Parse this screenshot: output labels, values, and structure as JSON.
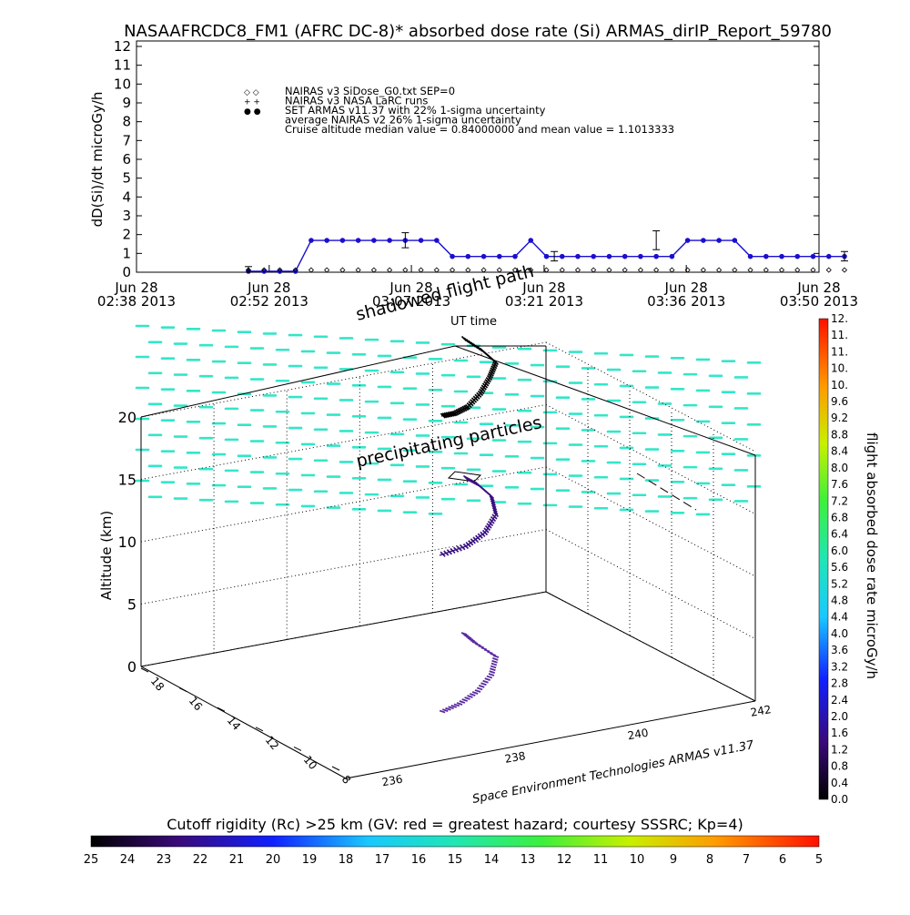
{
  "title": "NASAAFRCDC8_FM1 (AFRC DC-8)* absorbed dose rate (Si) ARMAS_dirIP_Report_59780",
  "chart_data": [
    {
      "type": "scatter",
      "ylabel": "dD(Si)/dt microGy/h",
      "ylim": [
        0,
        12
      ],
      "yticks": [
        "0",
        "1",
        "2",
        "3",
        "4",
        "5",
        "6",
        "7",
        "8",
        "9",
        "10",
        "11",
        "12"
      ],
      "xlim": [
        0,
        72
      ],
      "xtick_values": [
        0,
        14,
        29,
        43,
        58,
        72
      ],
      "xtick_top": [
        "Jun 28",
        "Jun 28",
        "Jun 28",
        "Jun 28",
        "Jun 28",
        "Jun 28"
      ],
      "xtick_bottom": [
        "02:38 2013",
        "02:52 2013",
        "03:07 2013",
        "03:21 2013",
        "03:36 2013",
        "03:50 2013"
      ],
      "legend": [
        {
          "symbol": "◇ ◇",
          "text": "NAIRAS v3 SiDose_G0.txt SEP=0"
        },
        {
          "symbol": "+ +",
          "text": "NAIRAS v3 NASA LaRC runs"
        },
        {
          "symbol": "● ●",
          "text": "SET ARMAS v11.37 with 22% 1-sigma uncertainty"
        },
        {
          "symbol": "",
          "text": "average NAIRAS v2 26% 1-sigma uncertainty"
        },
        {
          "symbol": "",
          "text": "Cruise altitude median value = 0.84000000 and mean value = 1.1013333"
        }
      ],
      "series": [
        {
          "name": "SET ARMAS v11.37",
          "color": "#1a0fcf",
          "x": [
            11,
            13,
            15,
            17,
            19,
            21,
            23,
            25,
            27,
            29,
            31,
            33,
            35,
            37,
            39,
            41,
            43,
            45,
            47,
            49,
            51,
            53,
            55,
            57,
            59,
            61,
            63,
            65,
            67,
            69,
            71,
            73,
            75,
            77,
            79,
            81,
            83,
            85,
            87
          ],
          "y": [
            0.05,
            0.05,
            0.05,
            0.05,
            1.69,
            1.69,
            1.69,
            1.69,
            1.69,
            1.69,
            1.69,
            1.69,
            1.69,
            0.84,
            0.84,
            0.84,
            0.84,
            0.84,
            1.69,
            0.84,
            0.84,
            0.84,
            0.84,
            0.84,
            0.84,
            0.84,
            0.84,
            0.84,
            1.69,
            1.69,
            1.69,
            1.69,
            0.84,
            0.84,
            0.84,
            0.84,
            0.84,
            0.84,
            0.84
          ]
        },
        {
          "name": "NAIRAS v3 SiDose_G0.txt SEP=0",
          "color": "#000000",
          "x": [
            11,
            13,
            15,
            17,
            19,
            21,
            23,
            25,
            27,
            29,
            31,
            33,
            35,
            37,
            39,
            41,
            43,
            45,
            47,
            49,
            51,
            53,
            55,
            57,
            59,
            61,
            63,
            65,
            67,
            69,
            71,
            73,
            75,
            77,
            79,
            81,
            83,
            85,
            87
          ],
          "y": [
            0.02,
            0.02,
            0.02,
            0.02,
            0.02,
            0.02,
            0.02,
            0.02,
            0.02,
            0.02,
            0.02,
            0.02,
            0.02,
            0.02,
            0.02,
            0.02,
            0.02,
            0.02,
            0.02,
            0.02,
            0.02,
            0.02,
            0.02,
            0.02,
            0.02,
            0.02,
            0.02,
            0.02,
            0.02,
            0.02,
            0.02,
            0.02,
            0.02,
            0.02,
            0.02,
            0.02,
            0.02,
            0.02,
            0.02
          ]
        }
      ],
      "error_bars_x": [
        11,
        31,
        50,
        63,
        87
      ],
      "error_bars": [
        {
          "x": 11,
          "y": 0.05,
          "lo": 0.0,
          "hi": 0.3
        },
        {
          "x": 31,
          "y": 1.69,
          "lo": 1.3,
          "hi": 2.1
        },
        {
          "x": 50,
          "y": 0.84,
          "lo": 0.6,
          "hi": 1.1
        },
        {
          "x": 63,
          "y": 1.69,
          "lo": 1.2,
          "hi": 2.2
        },
        {
          "x": 87,
          "y": 0.84,
          "lo": 0.6,
          "hi": 1.1
        }
      ]
    },
    {
      "type": "scatter",
      "ylabel": "Altitude (km)",
      "zlim": [
        0,
        20
      ],
      "zticks": [
        "0",
        "5",
        "10",
        "15",
        "20"
      ],
      "lat_ticks": [
        "8",
        "10",
        "12",
        "14",
        "16",
        "18"
      ],
      "lon_ticks": [
        "236",
        "238",
        "240",
        "242"
      ],
      "annotations": [
        "shadowed flight path",
        "UT time",
        "precipitating particles"
      ],
      "credit": "Space Environment Technologies ARMAS v11.37",
      "colorbar_label": "flight absorbed dose rate microGy/h",
      "colorbar_ticks": [
        "0.0",
        "0.4",
        "0.8",
        "1.2",
        "1.6",
        "2.0",
        "2.4",
        "2.8",
        "3.2",
        "3.6",
        "4.0",
        "4.4",
        "4.8",
        "5.2",
        "5.6",
        "6.0",
        "6.4",
        "6.8",
        "7.2",
        "7.6",
        "8.0",
        "8.4",
        "8.8",
        "9.2",
        "9.6",
        "10.",
        "10.",
        "11.",
        "11.",
        "12."
      ],
      "rigidity_label": "Cutoff rigidity (Rc) >25 km (GV: red = greatest hazard; courtesy SSSRC; Kp=4)",
      "rigidity_ticks": [
        "25",
        "24",
        "23",
        "22",
        "21",
        "20",
        "19",
        "18",
        "17",
        "16",
        "15",
        "14",
        "13",
        "12",
        "11",
        "10",
        "9",
        "8",
        "7",
        "6",
        "5"
      ],
      "rigidity_color": "#33e6c8"
    }
  ]
}
